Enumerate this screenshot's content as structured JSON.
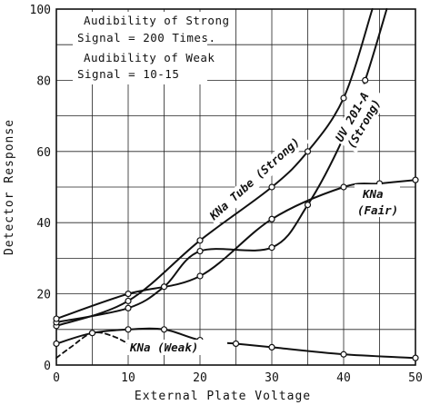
{
  "chart_data": {
    "type": "line",
    "xlabel": "External Plate Voltage",
    "ylabel": "Detector Response",
    "xlim": [
      0,
      50
    ],
    "ylim": [
      0,
      100
    ],
    "xticks": [
      0,
      10,
      20,
      30,
      40,
      50
    ],
    "yticks": [
      0,
      20,
      40,
      60,
      80,
      100
    ],
    "grid": true,
    "annotations": [
      "Audibility of Strong",
      "Signal = 200 Times.",
      "Audibility of Weak",
      "Signal = 10-15"
    ],
    "series": [
      {
        "name": "KNa Tube (Strong)",
        "x": [
          0,
          10,
          20,
          30,
          35,
          40,
          44
        ],
        "y": [
          11,
          18,
          35,
          50,
          60,
          75,
          100
        ]
      },
      {
        "name": "UV 201-A (Strong)",
        "x": [
          0,
          10,
          15,
          20,
          30,
          35,
          40,
          43,
          46
        ],
        "y": [
          12,
          16,
          22,
          32,
          33,
          45,
          64,
          80,
          100
        ]
      },
      {
        "name": "KNa (Fair)",
        "x": [
          0,
          10,
          20,
          30,
          40,
          45,
          50
        ],
        "y": [
          13,
          20,
          25,
          41,
          50,
          51,
          52
        ]
      },
      {
        "name": "KNa (Weak)",
        "x": [
          0,
          5,
          10,
          15,
          20,
          25,
          30,
          40,
          50
        ],
        "y": [
          6,
          9,
          10,
          10,
          7,
          6,
          5,
          3,
          2
        ]
      },
      {
        "name": "",
        "x": [
          0,
          2,
          5,
          8,
          12,
          15
        ],
        "y": [
          2,
          5,
          9,
          8,
          4,
          3
        ]
      }
    ],
    "curve_labels": {
      "kna_tube": "KNa Tube (Strong)",
      "uv_line1": "UV 201-A",
      "uv_line2": "(Strong)",
      "kna_fair_line1": "KNa",
      "kna_fair_line2": "(Fair)",
      "kna_weak": "KNa (Weak)"
    }
  }
}
